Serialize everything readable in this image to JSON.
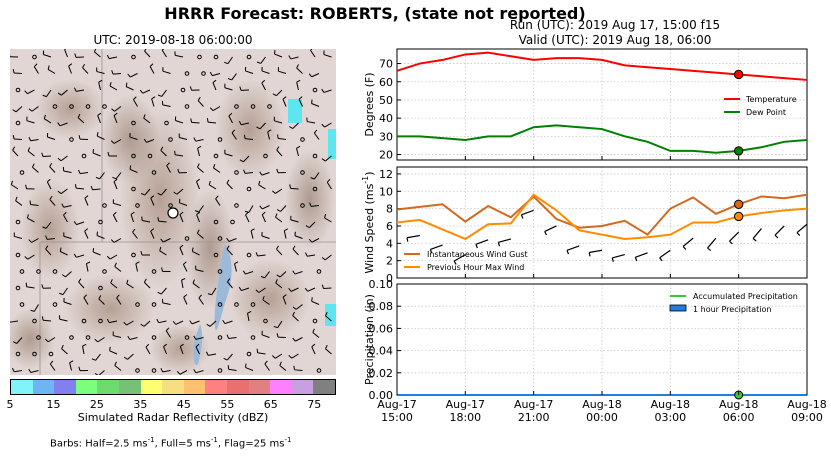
{
  "title": "HRRR Forecast: ROBERTS, (state not reported)",
  "map": {
    "title": "UTC: 2019-08-18 06:00:00",
    "colorbar_label": "Simulated Radar Reflectivity (dBZ)",
    "colorbar_ticks": [
      "5",
      "15",
      "25",
      "35",
      "45",
      "55",
      "65",
      "75"
    ],
    "colorbar_colors": [
      "#7ff4fb",
      "#6fb5f5",
      "#8080f0",
      "#7cff7c",
      "#6edb6e",
      "#77c177",
      "#ffff70",
      "#f5df80",
      "#ffc070",
      "#ff8080",
      "#e87070",
      "#e08080",
      "#ff80ff",
      "#c8a0e0",
      "#808080"
    ],
    "barb_note_prefix": "Barbs: Half=2.5 ms",
    "barb_note_mid1": ", Full=5 ms",
    "barb_note_mid2": ", Flag=25 ms",
    "barb_exp": "-1"
  },
  "run_line": "Run (UTC): 2019 Aug 17, 15:00 f15",
  "valid_line": "Valid (UTC): 2019 Aug 18, 06:00",
  "chart_data": [
    {
      "type": "line",
      "ylabel": "Degrees (F)",
      "ylim": [
        17,
        78
      ],
      "yticks": [
        20,
        30,
        40,
        50,
        60,
        70
      ],
      "x": [
        0,
        1,
        2,
        3,
        4,
        5,
        6,
        7,
        8,
        9,
        10,
        11,
        12,
        13,
        14,
        15,
        16,
        17,
        18
      ],
      "grid": true,
      "legend": "right",
      "marker_x": 15,
      "series": [
        {
          "name": "Temperature",
          "color": "#ff0000",
          "values": [
            66,
            70,
            72,
            75,
            76,
            74,
            72,
            73,
            73,
            72,
            69,
            68,
            67,
            66,
            65,
            64,
            63,
            62,
            61
          ]
        },
        {
          "name": "Dew Point",
          "color": "#008000",
          "values": [
            30,
            30,
            29,
            28,
            30,
            30,
            35,
            36,
            35,
            34,
            30,
            27,
            22,
            22,
            21,
            22,
            24,
            27,
            28
          ]
        }
      ]
    },
    {
      "type": "line",
      "ylabel": "Wind Speed (ms",
      "ylabel_exp": "-1",
      "ylim": [
        0,
        12.8
      ],
      "yticks": [
        0,
        2,
        4,
        6,
        8,
        10,
        12
      ],
      "x": [
        0,
        1,
        2,
        3,
        4,
        5,
        6,
        7,
        8,
        9,
        10,
        11,
        12,
        13,
        14,
        15,
        16,
        17,
        18
      ],
      "grid": true,
      "legend": "lower-left",
      "marker_x": 15,
      "series": [
        {
          "name": "Instantaneous Wind Gust",
          "color": "#d2691e",
          "values": [
            7.9,
            8.2,
            8.5,
            6.5,
            8.3,
            7.0,
            9.4,
            6.8,
            5.8,
            6.0,
            6.6,
            5.0,
            8.0,
            9.3,
            7.4,
            8.5,
            9.4,
            9.2,
            9.6
          ]
        },
        {
          "name": "Previous Hour Max Wind",
          "color": "#ff8c00",
          "values": [
            6.4,
            6.7,
            5.6,
            4.5,
            6.2,
            6.3,
            9.6,
            7.8,
            5.5,
            5.0,
            4.5,
            4.7,
            5.0,
            6.4,
            6.4,
            7.1,
            7.5,
            7.8,
            8.0
          ]
        }
      ]
    },
    {
      "type": "line",
      "ylabel": "Precipitation (in)",
      "ylim": [
        0,
        0.1
      ],
      "yticks": [
        "0.00",
        "0.02",
        "0.04",
        "0.06",
        "0.08",
        "0.10"
      ],
      "x": [
        0,
        1,
        2,
        3,
        4,
        5,
        6,
        7,
        8,
        9,
        10,
        11,
        12,
        13,
        14,
        15,
        16,
        17,
        18
      ],
      "grid": true,
      "legend": "upper-right",
      "marker_x": 15,
      "series": [
        {
          "name": "Accumulated Precipitation",
          "color": "#32cd32",
          "values": [
            0,
            0,
            0,
            0,
            0,
            0,
            0,
            0,
            0,
            0,
            0,
            0,
            0,
            0,
            0,
            0,
            0,
            0,
            0
          ]
        },
        {
          "name": "1 hour Precipitation",
          "color": "#1e7fe0",
          "values": [
            0,
            0,
            0,
            0,
            0,
            0,
            0,
            0,
            0,
            0,
            0,
            0,
            0,
            0,
            0,
            0,
            0,
            0,
            0
          ]
        }
      ]
    }
  ],
  "xaxis": {
    "tick_x": [
      0,
      3,
      6,
      9,
      12,
      15,
      18
    ],
    "tick_labels_top": [
      "Aug-17",
      "Aug-17",
      "Aug-17",
      "Aug-18",
      "Aug-18",
      "Aug-18",
      "Aug-18"
    ],
    "tick_labels_bottom": [
      "15:00",
      "18:00",
      "21:00",
      "00:00",
      "03:00",
      "06:00",
      "09:00"
    ]
  }
}
